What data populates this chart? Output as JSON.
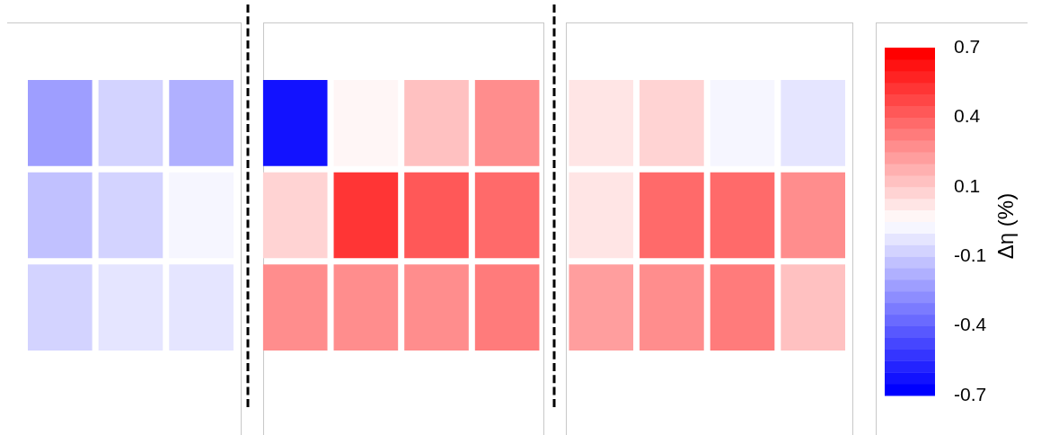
{
  "chart_data": {
    "type": "heatmap",
    "categories": [
      null,
      null,
      null,
      null,
      null,
      null,
      null,
      null,
      null,
      null,
      null,
      null,
      null
    ],
    "y_categories": [
      null,
      null,
      null
    ],
    "cells": [
      [
        -0.26,
        -0.12,
        -0.21,
        null,
        -0.63,
        0.02,
        0.16,
        0.3,
        null,
        0.07,
        0.12,
        -0.02,
        -0.07
      ],
      [
        -0.16,
        -0.12,
        -0.02,
        null,
        0.12,
        0.54,
        0.44,
        0.4,
        null,
        0.07,
        0.4,
        0.4,
        0.3
      ],
      [
        -0.12,
        -0.07,
        -0.07,
        null,
        0.3,
        0.3,
        0.3,
        0.35,
        null,
        0.26,
        0.3,
        0.35,
        0.16
      ]
    ],
    "clim": [
      -0.7,
      0.7
    ],
    "cticks": [
      0.7,
      {
        "value": 0.42,
        "label": "0.4"
      },
      {
        "value": 0.14,
        "label": "0.1"
      },
      {
        "value": -0.14,
        "label": "-0.1"
      },
      {
        "value": -0.42,
        "label": "-0.4"
      },
      -0.7
    ],
    "clabel": "Δη (%)"
  }
}
